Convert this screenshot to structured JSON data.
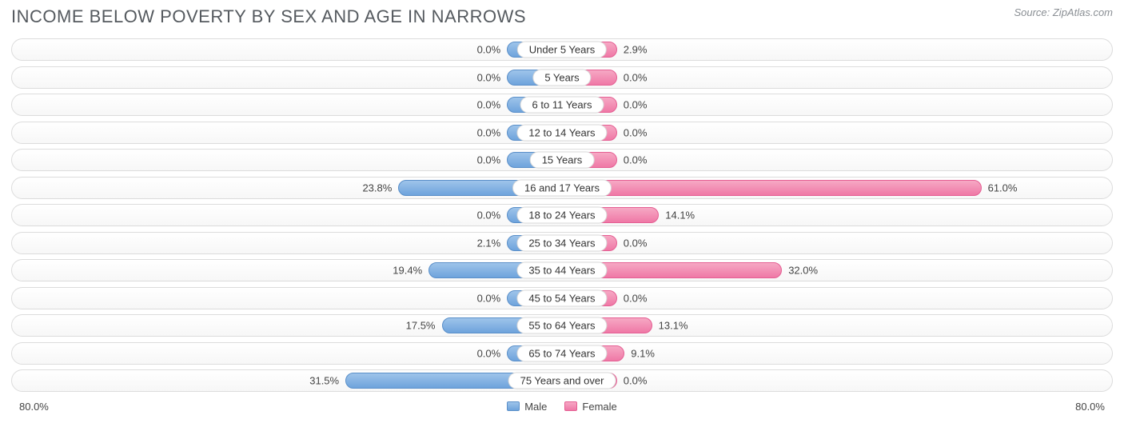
{
  "title": "INCOME BELOW POVERTY BY SEX AND AGE IN NARROWS",
  "source": "Source: ZipAtlas.com",
  "axis_max": 80.0,
  "axis_label_left": "80.0%",
  "axis_label_right": "80.0%",
  "min_bar_pct": 10.0,
  "colors": {
    "male_top": "#9ec4ea",
    "male_bottom": "#6ea3dc",
    "male_border": "#5a8fc9",
    "female_top": "#f6a8c4",
    "female_bottom": "#ef78a6",
    "female_border": "#e55f93",
    "row_border": "#dcdcdc",
    "text": "#444444",
    "title_color": "#555a5f",
    "source_color": "#8a8f94",
    "background": "#ffffff"
  },
  "legend": {
    "male": "Male",
    "female": "Female"
  },
  "rows": [
    {
      "label": "Under 5 Years",
      "male": 0.0,
      "female": 2.9
    },
    {
      "label": "5 Years",
      "male": 0.0,
      "female": 0.0
    },
    {
      "label": "6 to 11 Years",
      "male": 0.0,
      "female": 0.0
    },
    {
      "label": "12 to 14 Years",
      "male": 0.0,
      "female": 0.0
    },
    {
      "label": "15 Years",
      "male": 0.0,
      "female": 0.0
    },
    {
      "label": "16 and 17 Years",
      "male": 23.8,
      "female": 61.0
    },
    {
      "label": "18 to 24 Years",
      "male": 0.0,
      "female": 14.1
    },
    {
      "label": "25 to 34 Years",
      "male": 2.1,
      "female": 0.0
    },
    {
      "label": "35 to 44 Years",
      "male": 19.4,
      "female": 32.0
    },
    {
      "label": "45 to 54 Years",
      "male": 0.0,
      "female": 0.0
    },
    {
      "label": "55 to 64 Years",
      "male": 17.5,
      "female": 13.1
    },
    {
      "label": "65 to 74 Years",
      "male": 0.0,
      "female": 9.1
    },
    {
      "label": "75 Years and over",
      "male": 31.5,
      "female": 0.0
    }
  ]
}
